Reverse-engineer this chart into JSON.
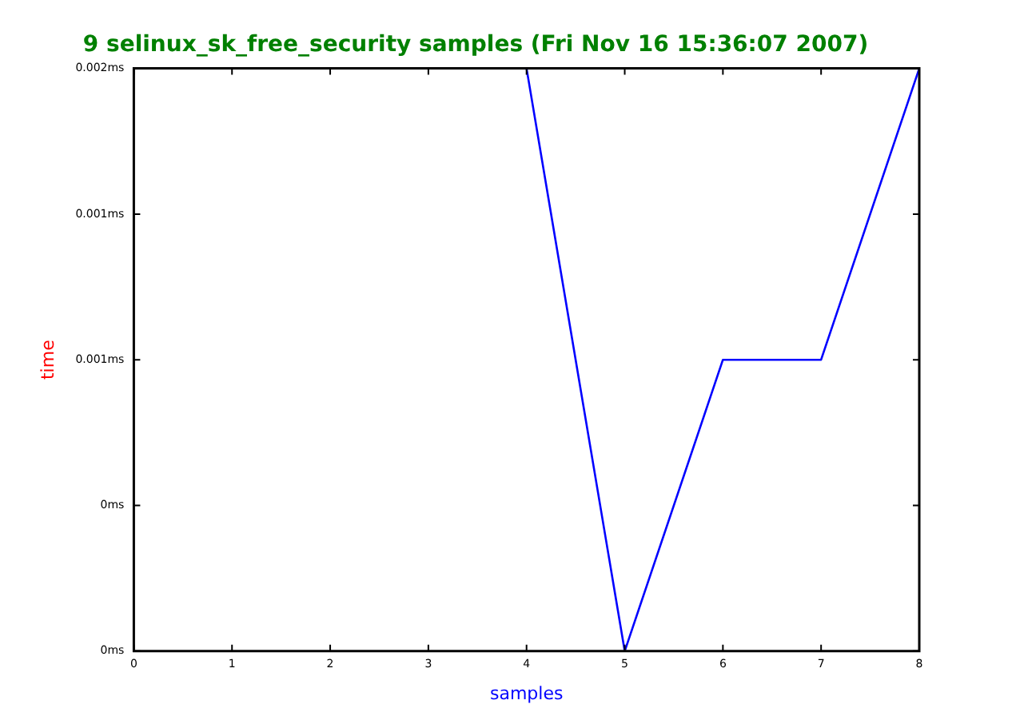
{
  "chart_data": {
    "type": "line",
    "title": "9 selinux_sk_free_security samples (Fri Nov 16 15:36:07 2007)",
    "xlabel": "samples",
    "ylabel": "time",
    "x": [
      4,
      5,
      6,
      7,
      8
    ],
    "series": [
      {
        "color": "#0000ff",
        "values": [
          0.0016,
          0,
          0.0008,
          0.0008,
          0.0016
        ]
      }
    ],
    "xlim": [
      0,
      8
    ],
    "xticks": [
      0,
      1,
      2,
      3,
      4,
      5,
      6,
      7,
      8
    ],
    "ylim": [
      0,
      0.0016
    ],
    "yticks": [
      {
        "value": 0,
        "label": "0ms"
      },
      {
        "value": 0.0004,
        "label": "0ms"
      },
      {
        "value": 0.0008,
        "label": "0.001ms"
      },
      {
        "value": 0.0012,
        "label": "0.001ms"
      },
      {
        "value": 0.0016,
        "label": "0.002ms"
      }
    ],
    "grid": false,
    "legend": false,
    "marker": "none",
    "line_style": "solid"
  }
}
